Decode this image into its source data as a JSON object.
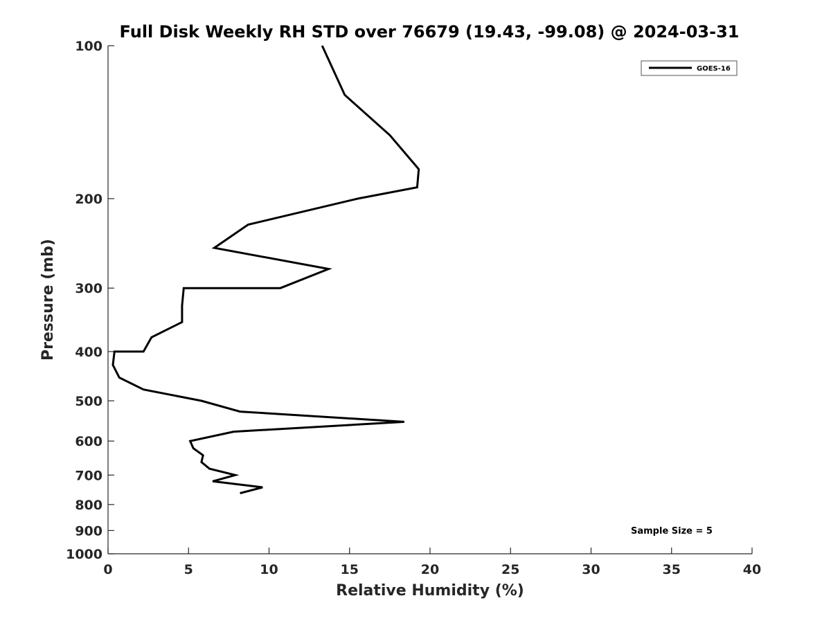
{
  "chart_data": {
    "type": "line",
    "title": "Full Disk Weekly RH STD over 76679 (19.43, -99.08) @ 2024-03-31",
    "xlabel": "Relative Humidity (%)",
    "ylabel": "Pressure (mb)",
    "xlim": [
      0,
      40
    ],
    "ylim": [
      100,
      1000
    ],
    "yscale": "log",
    "yreversed": true,
    "xticks": [
      0,
      5,
      10,
      15,
      20,
      25,
      30,
      35,
      40
    ],
    "xtick_labels": [
      "0",
      "5",
      "10",
      "15",
      "20",
      "25",
      "30",
      "35",
      "40"
    ],
    "yticks": [
      100,
      200,
      300,
      400,
      500,
      600,
      700,
      800,
      900,
      1000
    ],
    "ytick_labels": [
      "100",
      "200",
      "300",
      "400",
      "500",
      "600",
      "700",
      "800",
      "900",
      "1000"
    ],
    "grid": false,
    "legend_position": "top-right",
    "annotation": "Sample Size = 5",
    "series": [
      {
        "name": "GOES-16",
        "color": "#000000",
        "points": [
          [
            13.3,
            100
          ],
          [
            14.7,
            125
          ],
          [
            17.5,
            150
          ],
          [
            19.3,
            175
          ],
          [
            19.2,
            190
          ],
          [
            15.5,
            200
          ],
          [
            8.7,
            225
          ],
          [
            6.6,
            250
          ],
          [
            13.7,
            275
          ],
          [
            10.7,
            300
          ],
          [
            4.7,
            300
          ],
          [
            4.6,
            325
          ],
          [
            4.6,
            350
          ],
          [
            2.7,
            375
          ],
          [
            2.2,
            400
          ],
          [
            0.4,
            400
          ],
          [
            0.3,
            425
          ],
          [
            0.7,
            450
          ],
          [
            2.2,
            475
          ],
          [
            5.8,
            500
          ],
          [
            8.2,
            525
          ],
          [
            18.4,
            550
          ],
          [
            7.8,
            575
          ],
          [
            5.1,
            600
          ],
          [
            5.3,
            620
          ],
          [
            5.9,
            640
          ],
          [
            5.8,
            660
          ],
          [
            6.3,
            680
          ],
          [
            7.9,
            700
          ],
          [
            6.5,
            720
          ],
          [
            9.6,
            740
          ],
          [
            8.2,
            760
          ]
        ]
      }
    ]
  }
}
